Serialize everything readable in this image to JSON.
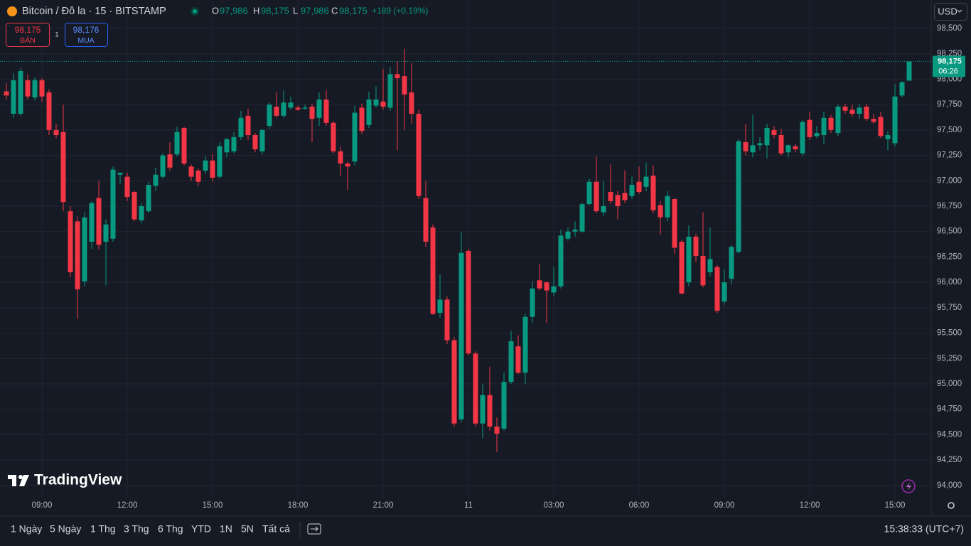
{
  "header": {
    "symbol": "Bitcoin / Đô la · 15 · BITSTAMP",
    "ohlc": [
      {
        "key": "O",
        "value": "97,986"
      },
      {
        "key": "H",
        "value": "98,175"
      },
      {
        "key": "L",
        "value": "97,986"
      },
      {
        "key": "C",
        "value": "98,175"
      }
    ],
    "change": "+189 (+0.19%)",
    "currency": "USD"
  },
  "trade": {
    "sell_price": "98,175",
    "sell_label": "BÁN",
    "spread": "1",
    "buy_price": "98,176",
    "buy_label": "MUA"
  },
  "price_tag": {
    "price": "98,175",
    "countdown": "06:26"
  },
  "logo": "TradingView",
  "toolbar": {
    "ranges": [
      "1 Ngày",
      "5 Ngày",
      "1 Thg",
      "3 Thg",
      "6 Thg",
      "YTD",
      "1N",
      "5N",
      "Tất cả"
    ],
    "clock": "15:38:33 (UTC+7)"
  },
  "chart_data": {
    "type": "candlestick",
    "up_color": "#089981",
    "down_color": "#f23645",
    "grid": true,
    "categories": [
      null,
      null,
      null,
      null,
      null,
      "09:00",
      null,
      null,
      null,
      null,
      null,
      null,
      null,
      null,
      null,
      null,
      null,
      "12:00",
      null,
      null,
      null,
      null,
      null,
      null,
      null,
      null,
      null,
      null,
      null,
      "15:00",
      null,
      null,
      null,
      null,
      null,
      null,
      null,
      null,
      null,
      null,
      null,
      "18:00",
      null,
      null,
      null,
      null,
      null,
      null,
      null,
      null,
      null,
      null,
      null,
      "21:00",
      null,
      null,
      null,
      null,
      null,
      null,
      null,
      null,
      null,
      null,
      null,
      "11",
      null,
      null,
      null,
      null,
      null,
      null,
      null,
      null,
      null,
      null,
      null,
      "03:00",
      null,
      null,
      null,
      null,
      null,
      null,
      null,
      null,
      null,
      null,
      null,
      "06:00",
      null,
      null,
      null,
      null,
      null,
      null,
      null,
      null,
      null,
      null,
      null,
      "09:00",
      null,
      null,
      null,
      null,
      null,
      null,
      null,
      null,
      null,
      null,
      null,
      "12:00",
      null,
      null,
      null,
      null,
      null,
      null,
      null,
      null,
      null,
      null,
      null,
      "15:00",
      null,
      null
    ],
    "open": [
      97880,
      97660,
      97660,
      97990,
      97820,
      97990,
      97870,
      97500,
      97480,
      96700,
      96600,
      96010,
      96400,
      96830,
      96400,
      96430,
      97060,
      97040,
      96890,
      96610,
      96700,
      96950,
      97040,
      97260,
      97260,
      97520,
      97140,
      97100,
      97100,
      97200,
      97040,
      97280,
      97290,
      97430,
      97640,
      97450,
      97290,
      97540,
      97730,
      97640,
      97720,
      97720,
      97710,
      97730,
      97620,
      97800,
      97570,
      97290,
      97170,
      97190,
      97720,
      97550,
      97740,
      97780,
      97720,
      98050,
      98030,
      97870,
      97660,
      96830,
      96540,
      95700,
      95830,
      95430,
      94650,
      96310,
      95300,
      94610,
      94890,
      94580,
      94560,
      95020,
      95370,
      95110,
      95660,
      96020,
      96000,
      95900,
      95960,
      96430,
      96500,
      96500,
      96770,
      96990,
      96690,
      96890,
      96860,
      96880,
      96850,
      96990,
      96940,
      97050,
      96760,
      96640,
      96820,
      96400,
      96000,
      96450,
      96260,
      96100,
      96150,
      95810,
      96035,
      96300,
      97380,
      97280,
      97350,
      97350,
      97500,
      97450,
      97280,
      97340,
      97270,
      97600,
      97440,
      97450,
      97620,
      97470,
      97730,
      97700,
      97660,
      97730,
      97610,
      97630,
      97410,
      97370,
      97840,
      97986
    ],
    "high": [
      97960,
      98060,
      98110,
      98050,
      98020,
      98010,
      97900,
      97560,
      97750,
      96750,
      96650,
      96690,
      96800,
      97000,
      96620,
      97140,
      97080,
      97080,
      96900,
      96780,
      96990,
      97130,
      97270,
      97380,
      97530,
      97530,
      97160,
      97120,
      97240,
      97260,
      97380,
      97420,
      97480,
      97690,
      97710,
      97470,
      97510,
      97770,
      97870,
      97890,
      97830,
      97740,
      97750,
      97760,
      97870,
      97890,
      97590,
      97340,
      97190,
      97740,
      97760,
      97880,
      97930,
      98100,
      98120,
      98180,
      98300,
      98160,
      97700,
      97000,
      96570,
      96080,
      95860,
      95460,
      96500,
      96330,
      95320,
      95000,
      95170,
      94670,
      95110,
      95520,
      95480,
      95690,
      96010,
      96180,
      96010,
      96150,
      96520,
      96540,
      96600,
      96780,
      97020,
      97240,
      97000,
      97160,
      96900,
      97100,
      97040,
      97140,
      97180,
      97150,
      96800,
      96900,
      96830,
      96420,
      96560,
      96480,
      96690,
      96540,
      96170,
      96130,
      96370,
      97410,
      97560,
      97650,
      97430,
      97560,
      97540,
      97510,
      97360,
      97360,
      97600,
      97680,
      97540,
      97680,
      97650,
      97750,
      97760,
      97750,
      97760,
      97760,
      97660,
      97680,
      97490,
      97950,
      97980,
      98175
    ],
    "low": [
      97800,
      97620,
      97640,
      97800,
      97790,
      97780,
      97450,
      97420,
      96700,
      96050,
      95640,
      95960,
      96330,
      96320,
      95970,
      96400,
      96970,
      96800,
      96600,
      96580,
      96680,
      96900,
      97020,
      97100,
      97240,
      97150,
      97000,
      96950,
      97070,
      96990,
      97020,
      97230,
      97270,
      97400,
      97400,
      97280,
      97260,
      97510,
      97620,
      97620,
      97700,
      97690,
      97700,
      97380,
      97540,
      97540,
      97270,
      97050,
      96910,
      97150,
      97460,
      97520,
      97720,
      97700,
      97690,
      97300,
      97500,
      97560,
      96820,
      96350,
      95680,
      95650,
      95390,
      94580,
      94620,
      95280,
      94580,
      94460,
      94540,
      94330,
      94540,
      95000,
      95100,
      95000,
      95600,
      95920,
      95600,
      95860,
      95940,
      96410,
      96450,
      96490,
      96760,
      96680,
      96650,
      96770,
      96620,
      96780,
      96820,
      96870,
      96900,
      96680,
      96470,
      96600,
      96280,
      95880,
      95960,
      96200,
      95950,
      96060,
      95700,
      95780,
      95980,
      96280,
      97250,
      97230,
      97300,
      97220,
      97420,
      97250,
      97230,
      97280,
      97240,
      97400,
      97420,
      97360,
      97470,
      97440,
      97660,
      97630,
      97610,
      97590,
      97560,
      97420,
      97300,
      97340,
      97820,
      97986
    ],
    "close": [
      97840,
      97990,
      98080,
      97830,
      97990,
      97830,
      97500,
      97450,
      96790,
      96100,
      95930,
      96640,
      96780,
      96370,
      96570,
      97110,
      97080,
      96840,
      96620,
      96750,
      96960,
      97060,
      97250,
      97130,
      97480,
      97170,
      97040,
      96990,
      97200,
      97030,
      97340,
      97410,
      97430,
      97620,
      97450,
      97310,
      97500,
      97750,
      97640,
      97770,
      97770,
      97700,
      97720,
      97610,
      97800,
      97570,
      97290,
      97170,
      97140,
      97670,
      97490,
      97800,
      97800,
      97730,
      98050,
      98010,
      97850,
      97660,
      96850,
      96400,
      95690,
      95830,
      95430,
      94610,
      96290,
      95300,
      94610,
      94890,
      94580,
      94510,
      95020,
      95420,
      95110,
      95660,
      95940,
      95940,
      95920,
      95960,
      96460,
      96500,
      96520,
      96770,
      96990,
      96700,
      96750,
      96800,
      96750,
      96810,
      96960,
      96890,
      97040,
      96710,
      96640,
      96850,
      96340,
      95890,
      96450,
      96260,
      95970,
      96230,
      95720,
      96000,
      96350,
      97390,
      97290,
      97350,
      97370,
      97520,
      97450,
      97270,
      97350,
      97310,
      97580,
      97430,
      97470,
      97620,
      97500,
      97730,
      97690,
      97660,
      97720,
      97610,
      97580,
      97440,
      97450,
      97830,
      97970,
      98175
    ],
    "ylim": [
      93880,
      98780
    ],
    "yticks": [
      {
        "value": 98500,
        "label": "98,500"
      },
      {
        "value": 98250,
        "label": "98,250"
      },
      {
        "value": 98000,
        "label": "98,000"
      },
      {
        "value": 97750,
        "label": "97,750"
      },
      {
        "value": 97500,
        "label": "97,500"
      },
      {
        "value": 97250,
        "label": "97,250"
      },
      {
        "value": 97000,
        "label": "97,000"
      },
      {
        "value": 96750,
        "label": "96,750"
      },
      {
        "value": 96500,
        "label": "96,500"
      },
      {
        "value": 96250,
        "label": "96,250"
      },
      {
        "value": 96000,
        "label": "96,000"
      },
      {
        "value": 95750,
        "label": "95,750"
      },
      {
        "value": 95500,
        "label": "95,500"
      },
      {
        "value": 95250,
        "label": "95,250"
      },
      {
        "value": 95000,
        "label": "95,000"
      },
      {
        "value": 94750,
        "label": "94,750"
      },
      {
        "value": 94500,
        "label": "94,500"
      },
      {
        "value": 94250,
        "label": "94,250"
      },
      {
        "value": 94000,
        "label": "94,000"
      }
    ]
  }
}
